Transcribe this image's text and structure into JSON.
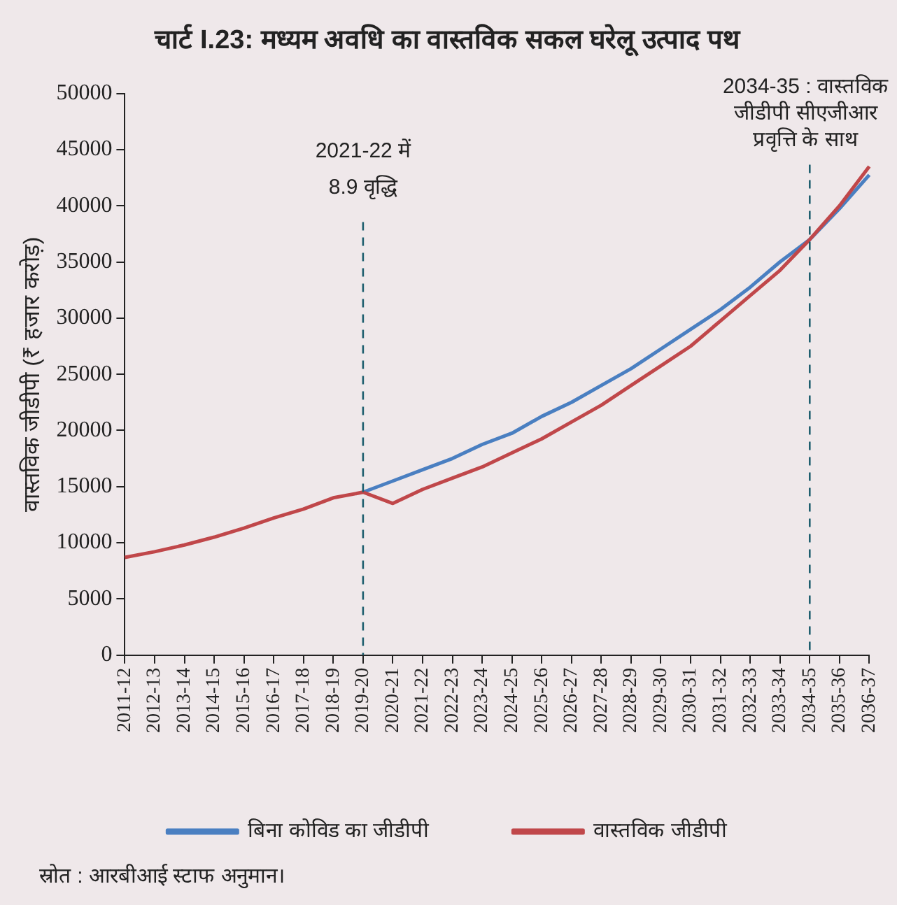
{
  "chart_data": {
    "type": "line",
    "title": "चार्ट I.23: मध्यम अवधि का वास्तविक सकल घरेलू उत्पाद पथ",
    "ylabel": "वास्तविक जीडीपी (₹ हजार करोड़)",
    "categories": [
      "2011-12",
      "2012-13",
      "2013-14",
      "2014-15",
      "2015-16",
      "2016-17",
      "2017-18",
      "2018-19",
      "2019-20",
      "2020-21",
      "2021-22",
      "2022-23",
      "2023-24",
      "2024-25",
      "2025-26",
      "2026-27",
      "2027-28",
      "2028-29",
      "2029-30",
      "2030-31",
      "2031-32",
      "2032-33",
      "2033-34",
      "2034-35",
      "2035-36",
      "2036-37"
    ],
    "series": [
      {
        "name": "बिना कोविड का जीडीपी",
        "color": "#4a7fc1",
        "values": [
          null,
          null,
          null,
          null,
          null,
          null,
          null,
          null,
          14500,
          15500,
          16500,
          17500,
          18750,
          19750,
          21250,
          22500,
          24000,
          25500,
          27250,
          29000,
          30750,
          32750,
          35000,
          37000,
          39750,
          42750
        ]
      },
      {
        "name": "वास्तविक जीडीपी",
        "color": "#c0474a",
        "values": [
          8700,
          9200,
          9800,
          10500,
          11300,
          12200,
          13000,
          14000,
          14500,
          13500,
          14750,
          15750,
          16750,
          18000,
          19250,
          20750,
          22250,
          24000,
          25750,
          27500,
          29750,
          32000,
          34250,
          37000,
          40000,
          43500
        ]
      }
    ],
    "ylim": [
      0,
      50000
    ],
    "yticks": [
      0,
      5000,
      10000,
      15000,
      20000,
      25000,
      30000,
      35000,
      40000,
      45000,
      50000
    ],
    "grid": false,
    "legend": "bottom",
    "marker": "none",
    "line_style": "solid",
    "ref_lines": [
      {
        "axis": "x",
        "value": "2019-20",
        "label": "2021-22 में\n8.9 वृद्धि",
        "color": "#1f5f6f",
        "line_style": "dashed"
      },
      {
        "axis": "x",
        "value": "2034-35",
        "label": "2034-35 : वास्तविक\nजीडीपी सीएजीआर\nप्रवृत्ति के साथ",
        "color": "#1f5f6f",
        "line_style": "dashed"
      }
    ],
    "annotations": [
      "स्रोत : आरबीआई स्टाफ अनुमान।"
    ]
  }
}
